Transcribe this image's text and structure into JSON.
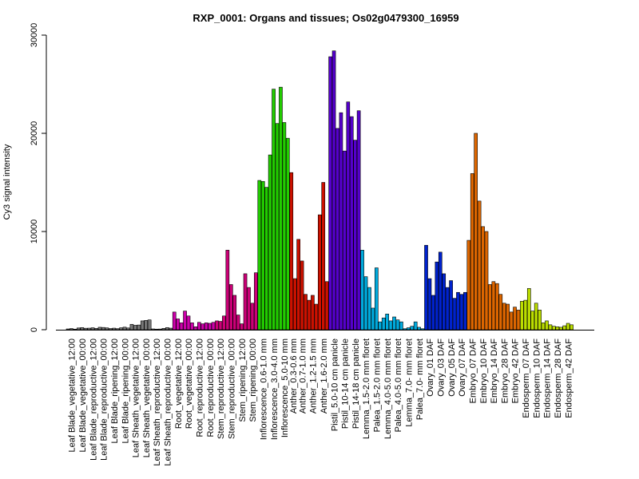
{
  "chart_data": {
    "type": "bar",
    "title": "RXP_0001: Organs and tissues; Os02g0479300_16959",
    "xlabel": "",
    "ylabel": "Cy3 signal intensity",
    "ylim": [
      0,
      30000
    ],
    "yticks": [
      0,
      10000,
      20000,
      30000
    ],
    "grid": false,
    "legend": "none",
    "group_labels": [
      "Leaf Blade_vegetative_12:00",
      "Leaf Blade_vegetative_00:00",
      "Leaf Blade_reproductive_12:00",
      "Leaf Blade_reproductive_00:00",
      "Leaf Blade_ripening_12:00",
      "Leaf Blade_ripening_00:00",
      "Leaf Sheath_vegetative_12:00",
      "Leaf Sheath_vegetative_00:00",
      "Leaf Sheath_reproductive_12:00",
      "Leaf Sheath_reproductive_00:00",
      "Root_vegetative_12:00",
      "Root_vegetative_00:00",
      "Root_reproductive_12:00",
      "Root_reproductive_00:00",
      "Stem_reproductive_12:00",
      "Stem_reproductive_00:00",
      "Stem_ripening_12:00",
      "Stem_ripening_00:00",
      "Inflorescence_0.6-1.0 mm",
      "Inflorescence_3.0-4.0 mm",
      "Inflorescence_5.0-10 mm",
      "Anther_0.3-0.6 mm",
      "Anther_0.7-1.0 mm",
      "Anther_1.2-1.5 mm",
      "Anther_1.6-2.0 mm",
      "Pistil_5.0-10 cm panicle",
      "Pistil_10-14 cm panicle",
      "Pistil_14-18 cm panicle",
      "Lemma_1.5-2.0 mm floret",
      "Palea_1.5-2.0 mm floret",
      "Lemma_4.0-5.0 mm floret",
      "Palea_4.0-5.0 mm floret",
      "Lemma_7.0- mm floret",
      "Palea_7.0- mm floret",
      "Ovary_01 DAF",
      "Ovary_03 DAF",
      "Ovary_05 DAF",
      "Ovary_07 DAF",
      "Embryo_07 DAF",
      "Embryo_10 DAF",
      "Embryo_14 DAF",
      "Embryo_28 DAF",
      "Embryo_42 DAF",
      "Endosperm_07 DAF",
      "Endosperm_10 DAF",
      "Endosperm_14 DAF",
      "Endosperm_28 DAF",
      "Endosperm_42 DAF"
    ],
    "groups": [
      {
        "color": "#777777",
        "values": [
          80,
          120,
          60
        ]
      },
      {
        "color": "#777777",
        "values": [
          180,
          220,
          150
        ]
      },
      {
        "color": "#777777",
        "values": [
          160,
          200,
          140
        ]
      },
      {
        "color": "#777777",
        "values": [
          250,
          230,
          190
        ]
      },
      {
        "color": "#777777",
        "values": [
          120,
          160,
          110
        ]
      },
      {
        "color": "#777777",
        "values": [
          200,
          260,
          180
        ]
      },
      {
        "color": "#777777",
        "values": [
          550,
          450,
          480
        ]
      },
      {
        "color": "#777777",
        "values": [
          900,
          950,
          1000
        ]
      },
      {
        "color": "#777777",
        "values": [
          80,
          60,
          70
        ]
      },
      {
        "color": "#777777",
        "values": [
          140,
          220,
          160
        ]
      },
      {
        "color": "#cc00aa",
        "values": [
          1800,
          1100,
          700
        ]
      },
      {
        "color": "#cc00aa",
        "values": [
          1900,
          1400,
          700
        ]
      },
      {
        "color": "#cc00aa",
        "values": [
          300,
          750,
          600
        ]
      },
      {
        "color": "#cc00aa",
        "values": [
          700,
          650,
          750
        ]
      },
      {
        "color": "#cc0077",
        "values": [
          900,
          850,
          1400
        ]
      },
      {
        "color": "#cc0077",
        "values": [
          8100,
          4600,
          3500
        ]
      },
      {
        "color": "#cc0077",
        "values": [
          1500,
          600,
          5700
        ]
      },
      {
        "color": "#cc0077",
        "values": [
          4300,
          2700,
          5800
        ]
      },
      {
        "color": "#22cc00",
        "values": [
          15200,
          15100,
          14500
        ]
      },
      {
        "color": "#22cc00",
        "values": [
          17800,
          24500,
          21000
        ]
      },
      {
        "color": "#22cc00",
        "values": [
          24700,
          21100,
          19500
        ]
      },
      {
        "color": "#cc1100",
        "values": [
          16000,
          5200
        ]
      },
      {
        "color": "#cc1100",
        "values": [
          9200,
          7000,
          3600
        ]
      },
      {
        "color": "#cc1100",
        "values": [
          3000,
          3500,
          2600
        ]
      },
      {
        "color": "#cc1100",
        "values": [
          11700,
          15000,
          4900
        ]
      },
      {
        "color": "#5500cc",
        "values": [
          27800,
          28400,
          20500
        ]
      },
      {
        "color": "#5500cc",
        "values": [
          22100,
          18200,
          23200
        ]
      },
      {
        "color": "#5500cc",
        "values": [
          21700,
          19300,
          22300
        ]
      },
      {
        "color": "#00aadd",
        "values": [
          8100,
          5400,
          4300
        ]
      },
      {
        "color": "#00aadd",
        "values": [
          2200,
          6300,
          800
        ]
      },
      {
        "color": "#00aadd",
        "values": [
          1200,
          1600,
          900
        ]
      },
      {
        "color": "#00aadd",
        "values": [
          1300,
          1000,
          800
        ]
      },
      {
        "color": "#00aadd",
        "values": [
          100,
          200,
          350
        ]
      },
      {
        "color": "#00aadd",
        "values": [
          800,
          250,
          100
        ]
      },
      {
        "color": "#0022cc",
        "values": [
          8600,
          5200,
          3500
        ]
      },
      {
        "color": "#0022cc",
        "values": [
          6900,
          7900,
          5700
        ]
      },
      {
        "color": "#0022cc",
        "values": [
          4300,
          5000,
          3200
        ]
      },
      {
        "color": "#0022cc",
        "values": [
          3800,
          3600,
          3800
        ]
      },
      {
        "color": "#dd6600",
        "values": [
          9100,
          15900,
          20000
        ]
      },
      {
        "color": "#dd6600",
        "values": [
          13100,
          10500,
          10000
        ]
      },
      {
        "color": "#dd6600",
        "values": [
          4600,
          4900,
          4700
        ]
      },
      {
        "color": "#dd6600",
        "values": [
          3600,
          2700,
          2600
        ]
      },
      {
        "color": "#dd6600",
        "values": [
          1800,
          2300,
          2000
        ]
      },
      {
        "color": "#bbdd00",
        "values": [
          2900,
          3000,
          4200
        ]
      },
      {
        "color": "#bbdd00",
        "values": [
          1900,
          2700,
          2000
        ]
      },
      {
        "color": "#bbdd00",
        "values": [
          700,
          900,
          500
        ]
      },
      {
        "color": "#bbdd00",
        "values": [
          350,
          300,
          250
        ]
      },
      {
        "color": "#bbdd00",
        "values": [
          400,
          650,
          500
        ]
      }
    ]
  }
}
